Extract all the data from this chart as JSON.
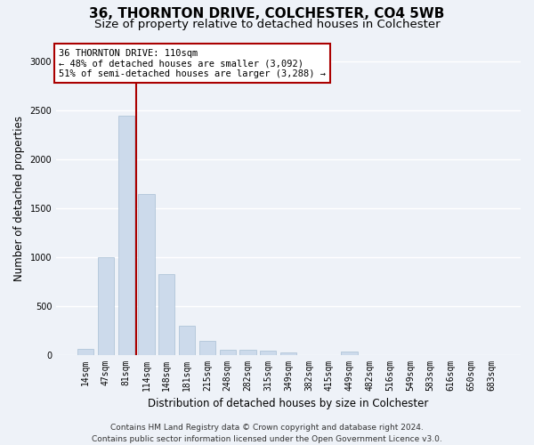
{
  "title1": "36, THORNTON DRIVE, COLCHESTER, CO4 5WB",
  "title2": "Size of property relative to detached houses in Colchester",
  "xlabel": "Distribution of detached houses by size in Colchester",
  "ylabel": "Number of detached properties",
  "footer1": "Contains HM Land Registry data © Crown copyright and database right 2024.",
  "footer2": "Contains public sector information licensed under the Open Government Licence v3.0.",
  "categories": [
    "14sqm",
    "47sqm",
    "81sqm",
    "114sqm",
    "148sqm",
    "181sqm",
    "215sqm",
    "248sqm",
    "282sqm",
    "315sqm",
    "349sqm",
    "382sqm",
    "415sqm",
    "449sqm",
    "482sqm",
    "516sqm",
    "549sqm",
    "583sqm",
    "616sqm",
    "650sqm",
    "683sqm"
  ],
  "values": [
    60,
    1000,
    2450,
    1650,
    830,
    300,
    140,
    55,
    55,
    45,
    20,
    0,
    0,
    30,
    0,
    0,
    0,
    0,
    0,
    0,
    0
  ],
  "bar_color": "#ccdaeb",
  "bar_edge_color": "#a8bfd4",
  "vline_color": "#aa0000",
  "vline_x": 2.48,
  "annotation_text": "36 THORNTON DRIVE: 110sqm\n← 48% of detached houses are smaller (3,092)\n51% of semi-detached houses are larger (3,288) →",
  "annotation_box_facecolor": "#ffffff",
  "annotation_box_edgecolor": "#aa0000",
  "ylim": [
    0,
    3200
  ],
  "yticks": [
    0,
    500,
    1000,
    1500,
    2000,
    2500,
    3000
  ],
  "background_color": "#eef2f8",
  "grid_color": "#ffffff",
  "title1_fontsize": 11,
  "title2_fontsize": 9.5,
  "ylabel_fontsize": 8.5,
  "xlabel_fontsize": 8.5,
  "tick_fontsize": 7,
  "annot_fontsize": 7.5,
  "footer_fontsize": 6.5
}
